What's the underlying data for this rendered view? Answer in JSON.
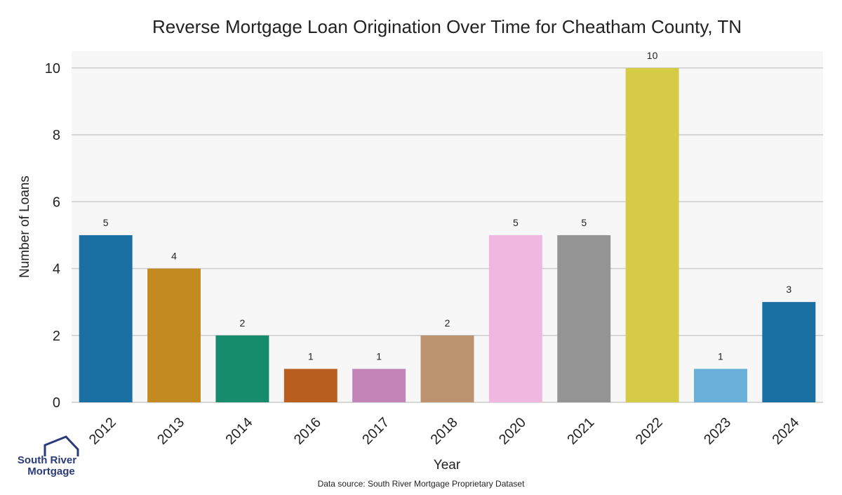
{
  "chart_data": {
    "type": "bar",
    "title": "Reverse Mortgage Loan Origination Over Time for Cheatham County, TN",
    "xlabel": "Year",
    "ylabel": "Number of Loans",
    "categories": [
      "2012",
      "2013",
      "2014",
      "2016",
      "2017",
      "2018",
      "2020",
      "2021",
      "2022",
      "2023",
      "2024"
    ],
    "values": [
      5,
      4,
      2,
      1,
      1,
      2,
      5,
      5,
      10,
      1,
      3
    ],
    "data_labels": [
      "5",
      "4",
      "2",
      "1",
      "1",
      "2",
      "5",
      "5",
      "10",
      "1",
      "3"
    ],
    "colors": [
      "#1a6fa3",
      "#c48a22",
      "#168c6c",
      "#b85e1e",
      "#c385b7",
      "#bd936f",
      "#f0b8e0",
      "#949494",
      "#d6cb47",
      "#68b0d9",
      "#1a6fa3"
    ],
    "ylim": [
      0,
      10.5
    ],
    "yticks": [
      0,
      2,
      4,
      6,
      8,
      10
    ],
    "grid": true,
    "legend": "none"
  },
  "footer": {
    "source": "Data source: South River Mortgage Proprietary Dataset"
  },
  "logo": {
    "line1": "South River",
    "line2": "Mortgage",
    "icon": "house-icon"
  },
  "colors": {
    "plot_background": "#f7f7f7",
    "grid": "#cccccc",
    "text": "#222222",
    "logo": "#2a3a7a"
  }
}
